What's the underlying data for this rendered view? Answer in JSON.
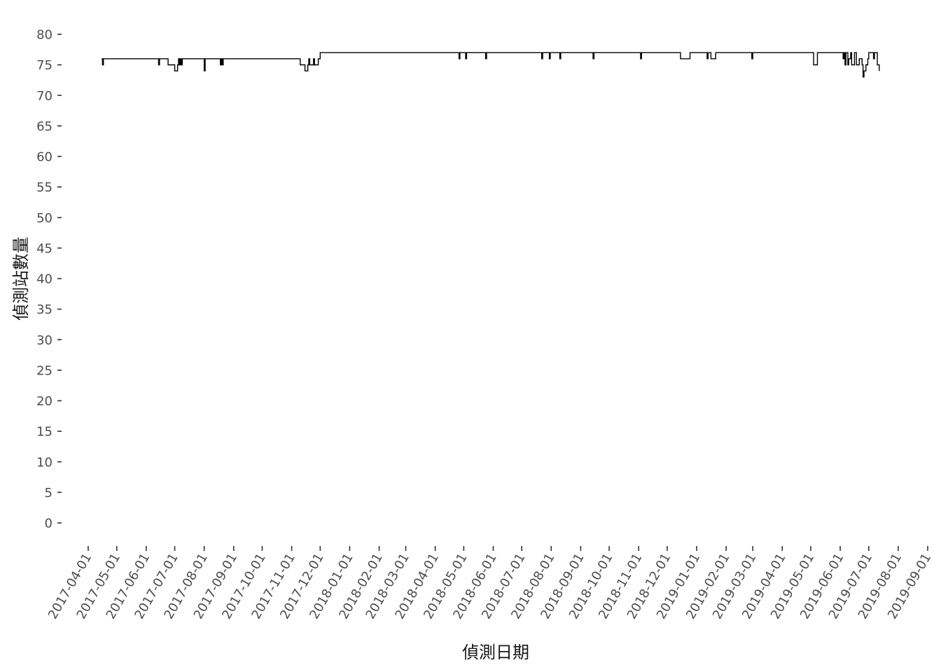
{
  "chart_data": {
    "type": "line",
    "xlabel": "偵測日期",
    "ylabel": "偵測站數量",
    "x_scale": "date",
    "xlim": [
      "2017-04-01",
      "2019-09-01"
    ],
    "ylim": [
      0,
      80
    ],
    "x_ticks": [
      "2017-04-01",
      "2017-05-01",
      "2017-06-01",
      "2017-07-01",
      "2017-08-01",
      "2017-09-01",
      "2017-10-01",
      "2017-11-01",
      "2017-12-01",
      "2018-01-01",
      "2018-02-01",
      "2018-03-01",
      "2018-04-01",
      "2018-05-01",
      "2018-06-01",
      "2018-07-01",
      "2018-08-01",
      "2018-09-01",
      "2018-10-01",
      "2018-11-01",
      "2018-12-01",
      "2019-01-01",
      "2019-02-01",
      "2019-03-01",
      "2019-04-01",
      "2019-05-01",
      "2019-06-01",
      "2019-07-01",
      "2019-08-01",
      "2019-09-01"
    ],
    "y_ticks": [
      "0",
      "5",
      "10",
      "15",
      "20",
      "25",
      "30",
      "35",
      "40",
      "45",
      "50",
      "55",
      "60",
      "65",
      "70",
      "75",
      "80"
    ],
    "grid": false,
    "series": [
      {
        "color": "#000000",
        "points": [
          [
            "2017-04-15",
            76
          ],
          [
            "2017-04-16",
            75
          ],
          [
            "2017-04-17",
            76
          ],
          [
            "2017-06-13",
            76
          ],
          [
            "2017-06-14",
            75
          ],
          [
            "2017-06-15",
            76
          ],
          [
            "2017-06-23",
            76
          ],
          [
            "2017-06-24",
            75
          ],
          [
            "2017-06-30",
            75
          ],
          [
            "2017-07-01",
            74
          ],
          [
            "2017-07-03",
            74
          ],
          [
            "2017-07-04",
            75
          ],
          [
            "2017-07-05",
            76
          ],
          [
            "2017-07-06",
            75
          ],
          [
            "2017-07-07",
            76
          ],
          [
            "2017-07-08",
            75
          ],
          [
            "2017-07-09",
            76
          ],
          [
            "2017-07-31",
            76
          ],
          [
            "2017-08-01",
            74
          ],
          [
            "2017-08-02",
            76
          ],
          [
            "2017-08-17",
            76
          ],
          [
            "2017-08-18",
            75
          ],
          [
            "2017-08-19",
            76
          ],
          [
            "2017-08-20",
            75
          ],
          [
            "2017-08-21",
            76
          ],
          [
            "2017-11-09",
            76
          ],
          [
            "2017-11-10",
            75
          ],
          [
            "2017-11-14",
            75
          ],
          [
            "2017-11-15",
            74
          ],
          [
            "2017-11-17",
            74
          ],
          [
            "2017-11-18",
            75
          ],
          [
            "2017-11-19",
            76
          ],
          [
            "2017-11-20",
            75
          ],
          [
            "2017-11-23",
            75
          ],
          [
            "2017-11-24",
            76
          ],
          [
            "2017-11-25",
            75
          ],
          [
            "2017-11-27",
            75
          ],
          [
            "2017-11-29",
            76
          ],
          [
            "2017-12-01",
            77
          ],
          [
            "2018-04-25",
            77
          ],
          [
            "2018-04-26",
            76
          ],
          [
            "2018-04-27",
            77
          ],
          [
            "2018-05-02",
            77
          ],
          [
            "2018-05-03",
            76
          ],
          [
            "2018-05-04",
            77
          ],
          [
            "2018-05-23",
            77
          ],
          [
            "2018-05-24",
            76
          ],
          [
            "2018-05-25",
            77
          ],
          [
            "2018-07-21",
            77
          ],
          [
            "2018-07-22",
            76
          ],
          [
            "2018-07-23",
            77
          ],
          [
            "2018-07-29",
            77
          ],
          [
            "2018-07-30",
            76
          ],
          [
            "2018-07-31",
            77
          ],
          [
            "2018-08-09",
            77
          ],
          [
            "2018-08-10",
            76
          ],
          [
            "2018-08-11",
            77
          ],
          [
            "2018-09-13",
            77
          ],
          [
            "2018-09-14",
            76
          ],
          [
            "2018-09-15",
            77
          ],
          [
            "2018-11-02",
            77
          ],
          [
            "2018-11-03",
            76
          ],
          [
            "2018-11-04",
            77
          ],
          [
            "2018-12-14",
            77
          ],
          [
            "2018-12-15",
            76
          ],
          [
            "2018-12-24",
            76
          ],
          [
            "2018-12-25",
            77
          ],
          [
            "2019-01-11",
            77
          ],
          [
            "2019-01-12",
            76
          ],
          [
            "2019-01-13",
            77
          ],
          [
            "2019-01-15",
            77
          ],
          [
            "2019-01-16",
            76
          ],
          [
            "2019-01-20",
            76
          ],
          [
            "2019-01-21",
            77
          ],
          [
            "2019-02-27",
            77
          ],
          [
            "2019-02-28",
            76
          ],
          [
            "2019-03-01",
            77
          ],
          [
            "2019-05-03",
            77
          ],
          [
            "2019-05-04",
            75
          ],
          [
            "2019-05-07",
            75
          ],
          [
            "2019-05-08",
            77
          ],
          [
            "2019-06-03",
            77
          ],
          [
            "2019-06-04",
            76
          ],
          [
            "2019-06-05",
            77
          ],
          [
            "2019-06-06",
            75
          ],
          [
            "2019-06-07",
            77
          ],
          [
            "2019-06-09",
            75
          ],
          [
            "2019-06-10",
            76
          ],
          [
            "2019-06-12",
            77
          ],
          [
            "2019-06-13",
            75
          ],
          [
            "2019-06-15",
            75
          ],
          [
            "2019-06-16",
            77
          ],
          [
            "2019-06-18",
            75
          ],
          [
            "2019-06-20",
            75
          ],
          [
            "2019-06-21",
            76
          ],
          [
            "2019-06-24",
            75
          ],
          [
            "2019-06-25",
            73
          ],
          [
            "2019-06-26",
            74
          ],
          [
            "2019-06-27",
            74
          ],
          [
            "2019-06-28",
            75
          ],
          [
            "2019-06-30",
            76
          ],
          [
            "2019-07-01",
            77
          ],
          [
            "2019-07-05",
            77
          ],
          [
            "2019-07-06",
            76
          ],
          [
            "2019-07-07",
            77
          ],
          [
            "2019-07-09",
            77
          ],
          [
            "2019-07-10",
            75
          ],
          [
            "2019-07-11",
            75
          ],
          [
            "2019-07-12",
            74
          ]
        ]
      }
    ]
  }
}
